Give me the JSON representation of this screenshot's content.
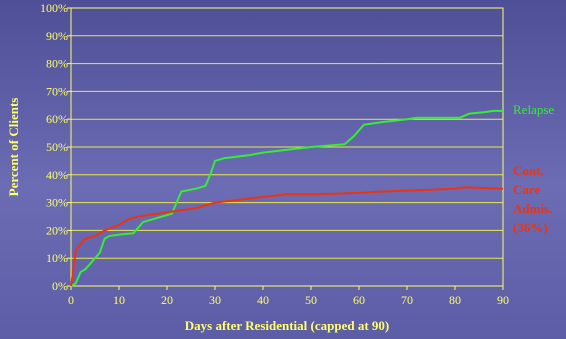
{
  "chart_data": {
    "type": "line",
    "xlabel": "Days after Residential (capped at 90)",
    "ylabel": "Percent of Clients",
    "xlim": [
      0,
      90
    ],
    "ylim": [
      0,
      100
    ],
    "x_ticks": [
      "0",
      "10",
      "20",
      "30",
      "40",
      "50",
      "60",
      "70",
      "80",
      "90"
    ],
    "y_ticks": [
      "0%",
      "10%",
      "20%",
      "30%",
      "40%",
      "50%",
      "60%",
      "70%",
      "80%",
      "90%",
      "100%"
    ],
    "grid": true,
    "legend_placement": "right",
    "colors": {
      "axes": "#ffff66",
      "grid": "#e8e84a",
      "relapse": "#33ee33",
      "cont_care": "#ee3311"
    },
    "series": [
      {
        "name": "Relapse",
        "color": "#33ee33",
        "points": [
          [
            0,
            0
          ],
          [
            1,
            1
          ],
          [
            2,
            5
          ],
          [
            3,
            6
          ],
          [
            4,
            8
          ],
          [
            5,
            10
          ],
          [
            6,
            12
          ],
          [
            7,
            17
          ],
          [
            8,
            18
          ],
          [
            10,
            18.5
          ],
          [
            13,
            19
          ],
          [
            15,
            23
          ],
          [
            17,
            24
          ],
          [
            19,
            25
          ],
          [
            21,
            26
          ],
          [
            22,
            30
          ],
          [
            23,
            34
          ],
          [
            26,
            35
          ],
          [
            28,
            36
          ],
          [
            29,
            40
          ],
          [
            30,
            45
          ],
          [
            32,
            46
          ],
          [
            37,
            47
          ],
          [
            40,
            48
          ],
          [
            45,
            49
          ],
          [
            50,
            50
          ],
          [
            57,
            51
          ],
          [
            59,
            54
          ],
          [
            61,
            58
          ],
          [
            65,
            59
          ],
          [
            70,
            60
          ],
          [
            72,
            60.5
          ],
          [
            76,
            60.5
          ],
          [
            81,
            60.5
          ],
          [
            83,
            62
          ],
          [
            86,
            62.5
          ],
          [
            88,
            63
          ],
          [
            90,
            63
          ]
        ]
      },
      {
        "name": "Cont. Care Admis. (36%)",
        "label_lines": [
          "Cont.",
          "Care",
          "Admis.",
          "(36%)"
        ],
        "color": "#ee3311",
        "points": [
          [
            0,
            0
          ],
          [
            0.5,
            6
          ],
          [
            1,
            13
          ],
          [
            2,
            15
          ],
          [
            3,
            17
          ],
          [
            5,
            18
          ],
          [
            7,
            20
          ],
          [
            10,
            22
          ],
          [
            12,
            24
          ],
          [
            14,
            25
          ],
          [
            18,
            26
          ],
          [
            22,
            27
          ],
          [
            26,
            28
          ],
          [
            28,
            29
          ],
          [
            30,
            30
          ],
          [
            35,
            31
          ],
          [
            40,
            32
          ],
          [
            45,
            33
          ],
          [
            50,
            33
          ],
          [
            55,
            33.2
          ],
          [
            60,
            33.5
          ],
          [
            65,
            34
          ],
          [
            70,
            34.3
          ],
          [
            75,
            34.6
          ],
          [
            80,
            35
          ],
          [
            82,
            35.5
          ],
          [
            85,
            35.3
          ],
          [
            90,
            35
          ]
        ]
      }
    ]
  }
}
